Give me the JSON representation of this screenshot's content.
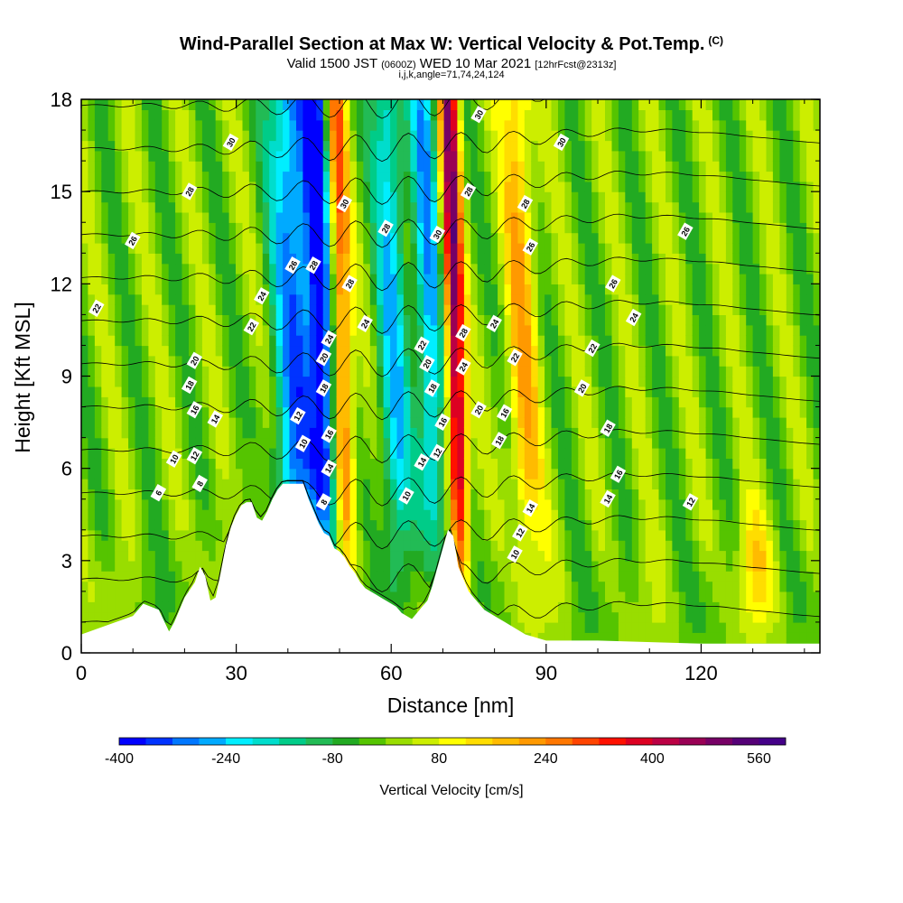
{
  "header": {
    "title": "Wind-Parallel Section at Max W: Vertical Velocity & Pot.Temp.",
    "copyright_mark": "(C)",
    "valid_prefix": "Valid 1500 JST",
    "valid_utc": "(0600Z)",
    "valid_date": "WED 10 Mar 2021",
    "forecast": "[12hrFcst@2313z]",
    "indices": "i,j,k,angle=71,74,24,124"
  },
  "chart_data": {
    "type": "heatmap",
    "xlabel": "Distance [nm]",
    "ylabel": "Height [Kft MSL]",
    "xlim": [
      0,
      143
    ],
    "ylim": [
      0,
      18
    ],
    "x_ticks": [
      0,
      30,
      60,
      90,
      120
    ],
    "y_ticks": [
      0,
      3,
      6,
      9,
      12,
      15,
      18
    ],
    "colorbar": {
      "label": "Vertical Velocity [cm/s]",
      "min": -400,
      "max": 600,
      "step": 40,
      "tick_labels": [
        -400,
        -240,
        -80,
        80,
        240,
        400,
        560
      ],
      "colors": [
        "#0000ff",
        "#0033ff",
        "#0077ff",
        "#00aaff",
        "#00eeff",
        "#00ddcc",
        "#00cc88",
        "#22bb55",
        "#22aa22",
        "#55c400",
        "#99dd00",
        "#ccee00",
        "#ffff00",
        "#ffdd00",
        "#ffbb00",
        "#ff9900",
        "#ff7700",
        "#ff4400",
        "#ff1100",
        "#dd0022",
        "#bb0044",
        "#990055",
        "#770066",
        "#550077",
        "#440088"
      ]
    },
    "terrain_profile": {
      "x": [
        0,
        5,
        10,
        12,
        15,
        17,
        18,
        20,
        22,
        23,
        24,
        25,
        26,
        27,
        28,
        29,
        30,
        31,
        32,
        33,
        34,
        35,
        36,
        37,
        38,
        39,
        40,
        41,
        42,
        43,
        44,
        45,
        46,
        47,
        48,
        49,
        50,
        51,
        52,
        53,
        54,
        55,
        56,
        57,
        58,
        59,
        60,
        61,
        62,
        63,
        64,
        65,
        66,
        67,
        68,
        69,
        70,
        71,
        72,
        73,
        74,
        75,
        76,
        77,
        78,
        80,
        82,
        84,
        86,
        88,
        90,
        100,
        120,
        143
      ],
      "y": [
        0.6,
        0.9,
        1.2,
        1.6,
        1.4,
        0.7,
        1.0,
        1.8,
        2.3,
        2.8,
        2.5,
        1.7,
        1.8,
        2.6,
        3.5,
        4.1,
        4.5,
        4.8,
        4.9,
        4.9,
        4.4,
        4.3,
        4.6,
        5.0,
        5.3,
        5.5,
        5.5,
        5.5,
        5.5,
        5.5,
        5.0,
        4.6,
        4.2,
        3.9,
        3.8,
        3.4,
        3.3,
        3.1,
        2.8,
        2.6,
        2.3,
        2.1,
        2.0,
        1.9,
        1.8,
        1.7,
        1.6,
        1.5,
        1.3,
        1.2,
        1.1,
        1.3,
        1.5,
        1.7,
        2.2,
        2.8,
        3.4,
        4.0,
        3.8,
        2.8,
        2.4,
        2.0,
        1.8,
        1.6,
        1.4,
        1.2,
        1.0,
        0.8,
        0.6,
        0.5,
        0.4,
        0.4,
        0.3,
        0.3
      ]
    },
    "theta_contours_K": [
      6,
      8,
      10,
      12,
      14,
      16,
      18,
      20,
      22,
      24,
      26,
      28,
      30
    ],
    "contour_labels": [
      {
        "text": "6",
        "x": 15,
        "y": 5.2
      },
      {
        "text": "8",
        "x": 47,
        "y": 4.9
      },
      {
        "text": "8",
        "x": 23,
        "y": 5.5
      },
      {
        "text": "10",
        "x": 18,
        "y": 6.3
      },
      {
        "text": "10",
        "x": 43,
        "y": 6.8
      },
      {
        "text": "10",
        "x": 63,
        "y": 5.1
      },
      {
        "text": "10",
        "x": 84,
        "y": 3.2
      },
      {
        "text": "12",
        "x": 22,
        "y": 6.4
      },
      {
        "text": "12",
        "x": 42,
        "y": 7.7
      },
      {
        "text": "12",
        "x": 69,
        "y": 6.5
      },
      {
        "text": "12",
        "x": 85,
        "y": 3.9
      },
      {
        "text": "12",
        "x": 118,
        "y": 4.9
      },
      {
        "text": "14",
        "x": 26,
        "y": 7.6
      },
      {
        "text": "14",
        "x": 48,
        "y": 6.0
      },
      {
        "text": "14",
        "x": 66,
        "y": 6.2
      },
      {
        "text": "14",
        "x": 87,
        "y": 4.7
      },
      {
        "text": "14",
        "x": 102,
        "y": 5.0
      },
      {
        "text": "16",
        "x": 22,
        "y": 7.9
      },
      {
        "text": "16",
        "x": 48,
        "y": 7.1
      },
      {
        "text": "16",
        "x": 70,
        "y": 7.5
      },
      {
        "text": "16",
        "x": 82,
        "y": 7.8
      },
      {
        "text": "16",
        "x": 104,
        "y": 5.8
      },
      {
        "text": "18",
        "x": 21,
        "y": 8.7
      },
      {
        "text": "18",
        "x": 47,
        "y": 8.6
      },
      {
        "text": "18",
        "x": 68,
        "y": 8.6
      },
      {
        "text": "18",
        "x": 81,
        "y": 6.9
      },
      {
        "text": "18",
        "x": 102,
        "y": 7.3
      },
      {
        "text": "20",
        "x": 22,
        "y": 9.5
      },
      {
        "text": "20",
        "x": 47,
        "y": 9.6
      },
      {
        "text": "20",
        "x": 67,
        "y": 9.4
      },
      {
        "text": "20",
        "x": 77,
        "y": 7.9
      },
      {
        "text": "20",
        "x": 97,
        "y": 8.6
      },
      {
        "text": "22",
        "x": 3,
        "y": 11.2
      },
      {
        "text": "22",
        "x": 33,
        "y": 10.6
      },
      {
        "text": "22",
        "x": 66,
        "y": 10.0
      },
      {
        "text": "22",
        "x": 84,
        "y": 9.6
      },
      {
        "text": "22",
        "x": 99,
        "y": 9.9
      },
      {
        "text": "24",
        "x": 35,
        "y": 11.6
      },
      {
        "text": "24",
        "x": 48,
        "y": 10.2
      },
      {
        "text": "24",
        "x": 55,
        "y": 10.7
      },
      {
        "text": "24",
        "x": 74,
        "y": 9.3
      },
      {
        "text": "24",
        "x": 80,
        "y": 10.7
      },
      {
        "text": "24",
        "x": 107,
        "y": 10.9
      },
      {
        "text": "26",
        "x": 10,
        "y": 13.4
      },
      {
        "text": "26",
        "x": 41,
        "y": 12.6
      },
      {
        "text": "26",
        "x": 87,
        "y": 13.2
      },
      {
        "text": "26",
        "x": 103,
        "y": 12.0
      },
      {
        "text": "26",
        "x": 117,
        "y": 13.7
      },
      {
        "text": "28",
        "x": 21,
        "y": 15.0
      },
      {
        "text": "28",
        "x": 45,
        "y": 12.6
      },
      {
        "text": "28",
        "x": 52,
        "y": 12.0
      },
      {
        "text": "28",
        "x": 59,
        "y": 13.8
      },
      {
        "text": "28",
        "x": 74,
        "y": 10.4
      },
      {
        "text": "28",
        "x": 75,
        "y": 15.0
      },
      {
        "text": "28",
        "x": 86,
        "y": 14.6
      },
      {
        "text": "30",
        "x": 29,
        "y": 16.6
      },
      {
        "text": "30",
        "x": 51,
        "y": 14.6
      },
      {
        "text": "30",
        "x": 69,
        "y": 13.6
      },
      {
        "text": "30",
        "x": 77,
        "y": 17.5
      },
      {
        "text": "30",
        "x": 93,
        "y": 16.6
      }
    ]
  }
}
